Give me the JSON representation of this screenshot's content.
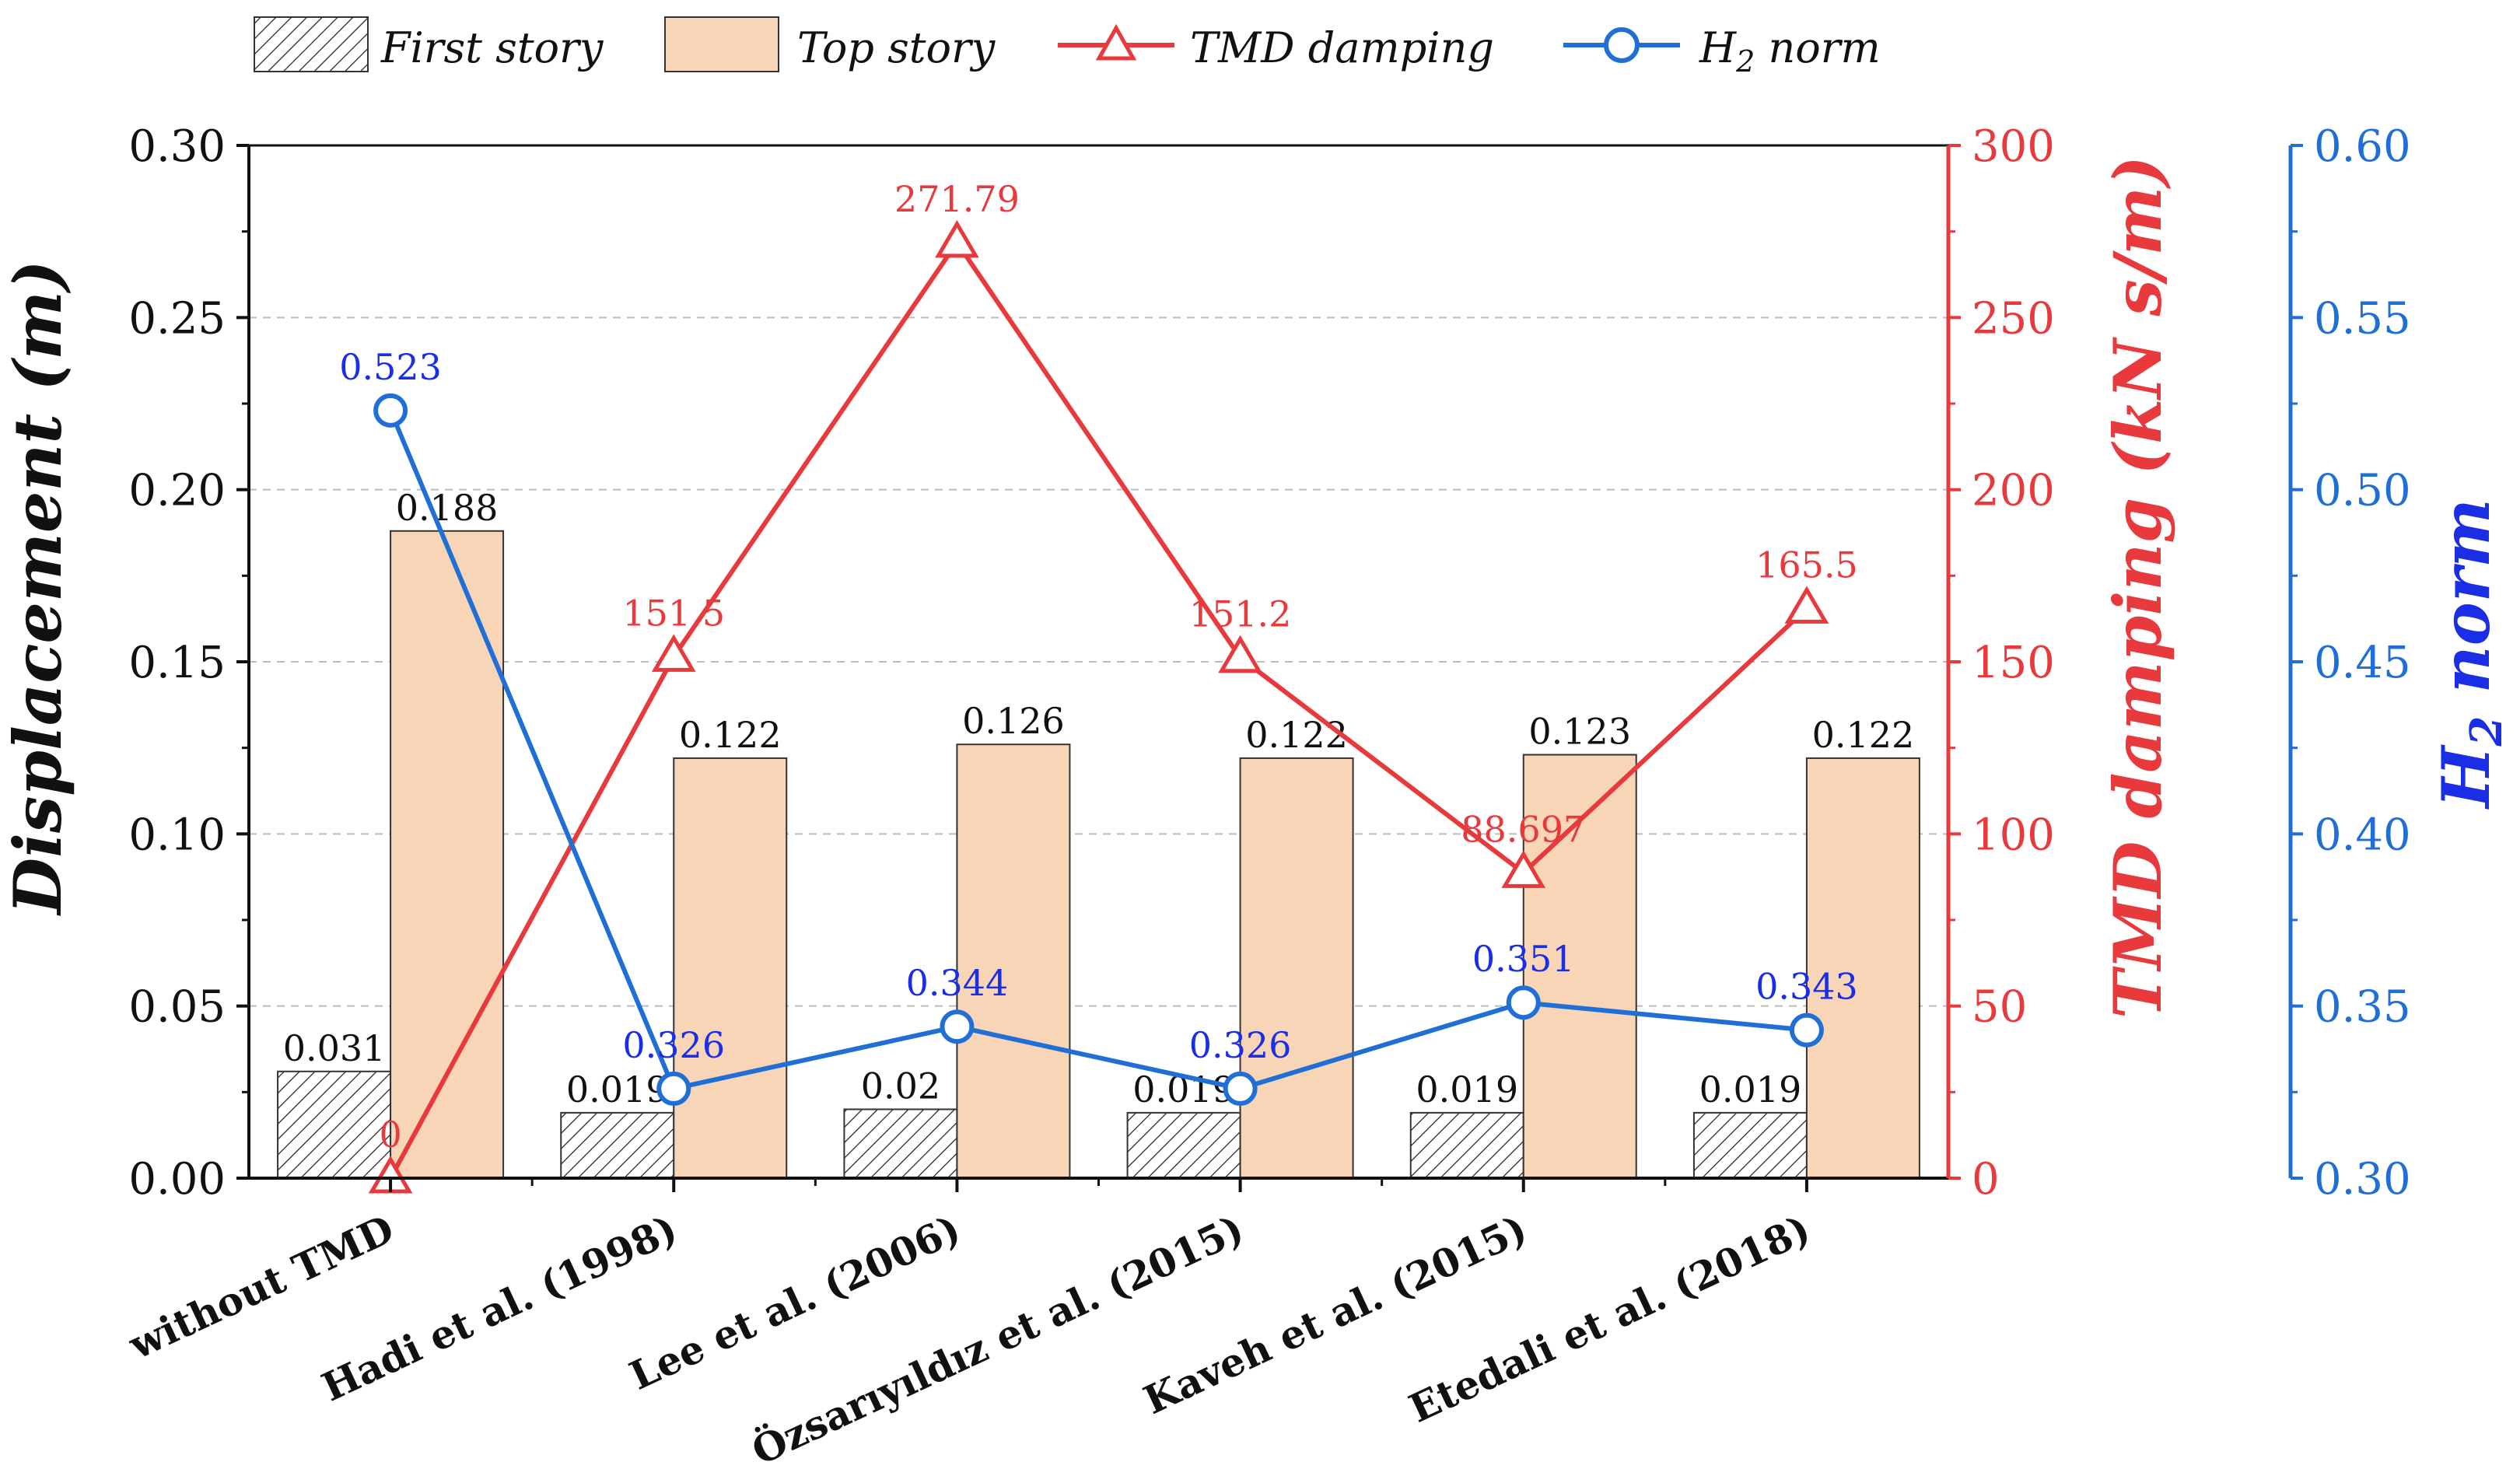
{
  "chart_data": {
    "type": "bar+line",
    "categories": [
      "without TMD",
      "Hadi et al. (1998)",
      "Lee et al. (2006)",
      "Özsarıyıldız et al. (2015)",
      "Kaveh et al. (2015)",
      "Etedali et al. (2018)"
    ],
    "bar_series": [
      {
        "name": "First story",
        "values": [
          0.031,
          0.019,
          0.02,
          0.019,
          0.019,
          0.019
        ],
        "labels": [
          "0.031",
          "0.019",
          "0.02",
          "0.019",
          "0.019",
          "0.019"
        ],
        "color": "#ffffff",
        "pattern": "hatch"
      },
      {
        "name": "Top story",
        "values": [
          0.188,
          0.122,
          0.126,
          0.122,
          0.123,
          0.122
        ],
        "labels": [
          "0.188",
          "0.122",
          "0.126",
          "0.122",
          "0.123",
          "0.122"
        ],
        "color": "#f8d5b6"
      }
    ],
    "line_series": [
      {
        "name": "TMD damping",
        "values": [
          0,
          151.5,
          271.79,
          151.2,
          88.697,
          165.5
        ],
        "labels": [
          "0",
          "151.5",
          "271.79",
          "151.2",
          "88.697",
          "165.5"
        ],
        "color": "#e8393d",
        "marker": "triangle",
        "axis": "right1"
      },
      {
        "name": "H",
        "subscript": "2",
        "name_suffix": " norm",
        "values": [
          0.523,
          0.326,
          0.344,
          0.326,
          0.351,
          0.343
        ],
        "labels": [
          "0.523",
          "0.326",
          "0.344",
          "0.326",
          "0.351",
          "0.343"
        ],
        "color": "#1f6fd6",
        "label_color": "#1a2ee6",
        "marker": "circle",
        "axis": "right2"
      }
    ],
    "axes": {
      "left": {
        "label": "Displacement (m)",
        "ylim": [
          0,
          0.3
        ],
        "ticks": [
          "0.00",
          "0.05",
          "0.10",
          "0.15",
          "0.20",
          "0.25",
          "0.30"
        ],
        "color": "#111111"
      },
      "right1": {
        "label": "TMD damping (kN s/m)",
        "ylim": [
          0,
          300
        ],
        "ticks": [
          "0",
          "50",
          "100",
          "150",
          "200",
          "250",
          "300"
        ],
        "color": "#e8393d"
      },
      "right2": {
        "label": "H",
        "label_sub": "2",
        "label_suffix": " norm",
        "ylim": [
          0.3,
          0.6
        ],
        "ticks": [
          "0.30",
          "0.35",
          "0.40",
          "0.45",
          "0.50",
          "0.55",
          "0.60"
        ],
        "color": "#1f6fd6",
        "label_color": "#1a2ee6"
      }
    },
    "grid": true,
    "legend": {
      "placement": "top",
      "entries": [
        "First story",
        "Top story",
        "TMD damping",
        "H2 norm"
      ]
    }
  }
}
